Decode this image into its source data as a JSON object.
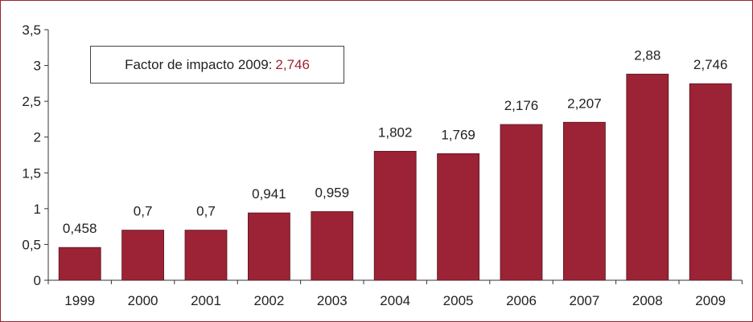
{
  "chart_data": {
    "type": "bar",
    "categories": [
      "1999",
      "2000",
      "2001",
      "2002",
      "2003",
      "2004",
      "2005",
      "2006",
      "2007",
      "2008",
      "2009"
    ],
    "values": [
      0.458,
      0.7,
      0.7,
      0.941,
      0.959,
      1.802,
      1.769,
      2.176,
      2.207,
      2.88,
      2.746
    ],
    "data_labels": [
      "0,458",
      "0,7",
      "0,7",
      "0,941",
      "0,959",
      "1,802",
      "1,769",
      "2,176",
      "2,207",
      "2,88",
      "2,746"
    ],
    "ylim": [
      0,
      3.5
    ],
    "yticks": [
      0,
      0.5,
      1,
      1.5,
      2,
      2.5,
      3,
      3.5
    ],
    "ytick_labels": [
      "0",
      "0,5",
      "1",
      "1,5",
      "2",
      "2,5",
      "3",
      "3,5"
    ],
    "grid": false,
    "bar_color": "#9b2335",
    "annotation": {
      "text": "Factor de impacto 2009:",
      "value": "2,746",
      "value_color": "#9b2335"
    }
  }
}
